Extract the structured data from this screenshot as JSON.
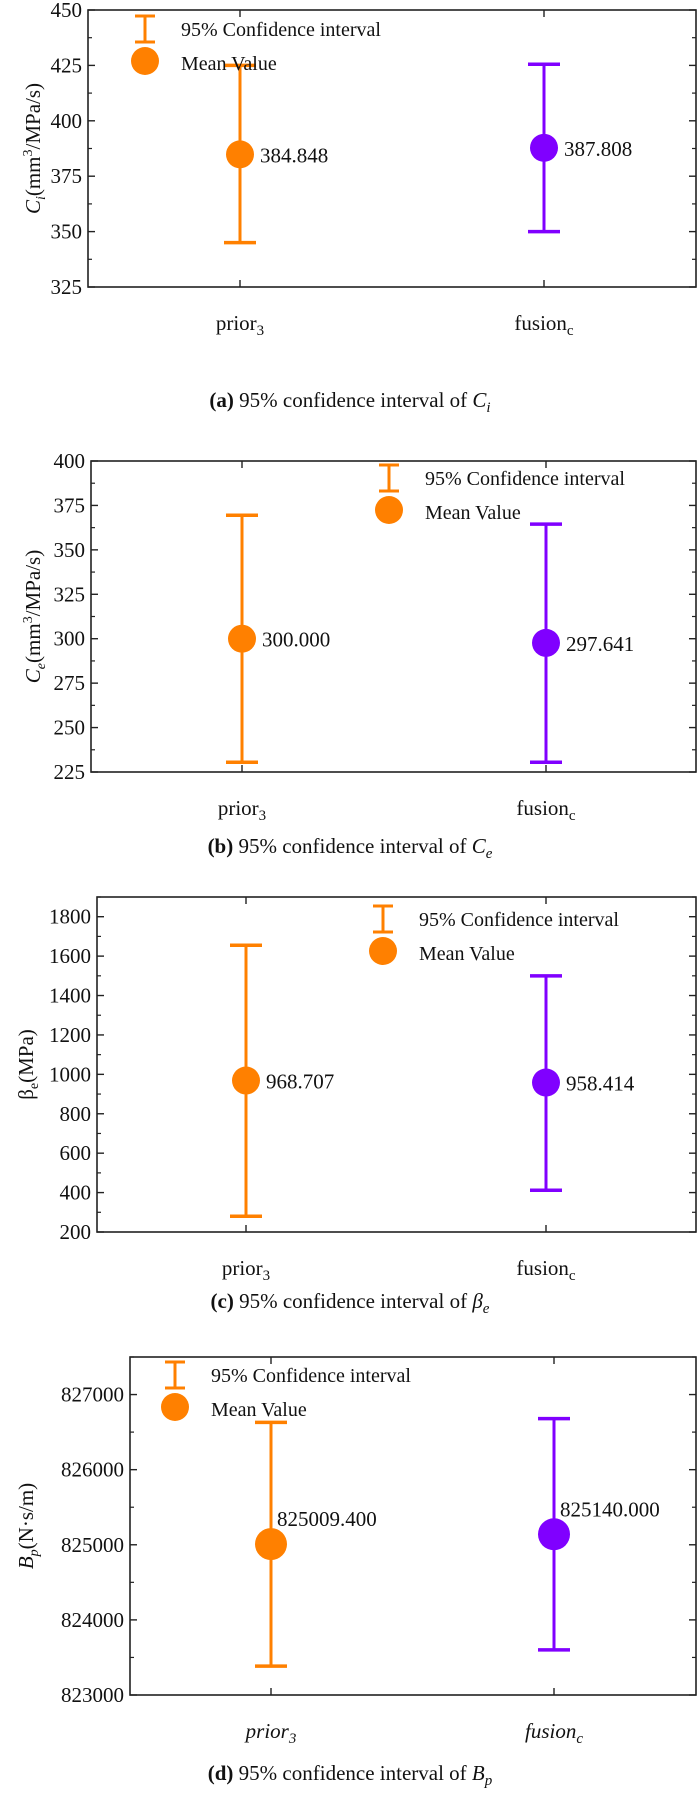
{
  "colors": {
    "prior": "#ff8000",
    "fusion": "#8000ff",
    "axis": "#222222"
  },
  "legend": {
    "ci_label": "95% Confidence interval",
    "mean_label": "Mean Value"
  },
  "chart_data": [
    {
      "type": "errorbar",
      "id": "a",
      "caption_prefix": "(a)",
      "caption_text": "95% confidence interval of",
      "caption_symbol": "C",
      "caption_sub": "i",
      "ylabel_symbol": "C",
      "ylabel_sub": "i",
      "ylabel_unit_pre": "(mm",
      "ylabel_unit_sup": "3",
      "ylabel_unit_post": "/MPa/s)",
      "ylim": [
        325,
        450
      ],
      "yticks": [
        "325",
        "350",
        "375",
        "400",
        "425",
        "450"
      ],
      "ytick_values": [
        325,
        350,
        375,
        400,
        425,
        450
      ],
      "minor_step": 12.5,
      "categories": [
        {
          "name": "prior",
          "sub": "3",
          "italic": false
        },
        {
          "name": "fusion",
          "sub": "c",
          "italic": false
        }
      ],
      "series": [
        {
          "name": "prior3",
          "mean": 384.848,
          "mean_label": "384.848",
          "lower": 345.0,
          "upper": 425.0
        },
        {
          "name": "fusionc",
          "mean": 387.808,
          "mean_label": "387.808",
          "lower": 350.0,
          "upper": 425.5
        }
      ],
      "legend_position": "top-left"
    },
    {
      "type": "errorbar",
      "id": "b",
      "caption_prefix": "(b)",
      "caption_text": "95% confidence interval of",
      "caption_symbol": "C",
      "caption_sub": "e",
      "ylabel_symbol": "C",
      "ylabel_sub": "e",
      "ylabel_unit_pre": "(mm",
      "ylabel_unit_sup": "3",
      "ylabel_unit_post": "/MPa/s)",
      "ylim": [
        225,
        400
      ],
      "yticks": [
        "225",
        "250",
        "275",
        "300",
        "325",
        "350",
        "375",
        "400"
      ],
      "ytick_values": [
        225,
        250,
        275,
        300,
        325,
        350,
        375,
        400
      ],
      "minor_step": 12.5,
      "categories": [
        {
          "name": "prior",
          "sub": "3",
          "italic": false
        },
        {
          "name": "fusion",
          "sub": "c",
          "italic": false
        }
      ],
      "series": [
        {
          "name": "prior3",
          "mean": 300.0,
          "mean_label": "300.000",
          "lower": 230.5,
          "upper": 369.5
        },
        {
          "name": "fusionc",
          "mean": 297.641,
          "mean_label": "297.641",
          "lower": 230.5,
          "upper": 364.5
        }
      ],
      "legend_position": "top-right"
    },
    {
      "type": "errorbar",
      "id": "c",
      "caption_prefix": "(c)",
      "caption_text": "95% confidence interval of",
      "caption_symbol": "β",
      "caption_sub": "e",
      "ylabel_symbol": "β",
      "ylabel_sub": "e",
      "ylabel_unit_pre": "(MPa)",
      "ylabel_unit_sup": "",
      "ylabel_unit_post": "",
      "ylim": [
        200,
        1900
      ],
      "yticks": [
        "200",
        "400",
        "600",
        "800",
        "1000",
        "1200",
        "1400",
        "1600",
        "1800"
      ],
      "ytick_values": [
        200,
        400,
        600,
        800,
        1000,
        1200,
        1400,
        1600,
        1800
      ],
      "minor_step": 100,
      "categories": [
        {
          "name": "prior",
          "sub": "3",
          "italic": false
        },
        {
          "name": "fusion",
          "sub": "c",
          "italic": false
        }
      ],
      "series": [
        {
          "name": "prior3",
          "mean": 968.707,
          "mean_label": "968.707",
          "lower": 280,
          "upper": 1655
        },
        {
          "name": "fusionc",
          "mean": 958.414,
          "mean_label": "958.414",
          "lower": 412,
          "upper": 1500
        }
      ],
      "legend_position": "top-right"
    },
    {
      "type": "errorbar",
      "id": "d",
      "caption_prefix": "(d)",
      "caption_text": "95% confidence interval of",
      "caption_symbol": "B",
      "caption_sub": "p",
      "ylabel_symbol": "B",
      "ylabel_sub": "p",
      "ylabel_unit_pre": "(N·s/m)",
      "ylabel_unit_sup": "",
      "ylabel_unit_post": "",
      "ylim": [
        823000,
        827500
      ],
      "yticks": [
        "823000",
        "824000",
        "825000",
        "826000",
        "827000"
      ],
      "ytick_values": [
        823000,
        824000,
        825000,
        826000,
        827000
      ],
      "minor_step": 500,
      "categories": [
        {
          "name": "prior",
          "sub": "3",
          "italic": true
        },
        {
          "name": "fusion",
          "sub": "c",
          "italic": true
        }
      ],
      "series": [
        {
          "name": "prior3",
          "mean": 825009.4,
          "mean_label": "825009.400",
          "lower": 823385,
          "upper": 826630
        },
        {
          "name": "fusionc",
          "mean": 825140.0,
          "mean_label": "825140.000",
          "lower": 823600,
          "upper": 826680
        }
      ],
      "legend_position": "top-left"
    }
  ]
}
